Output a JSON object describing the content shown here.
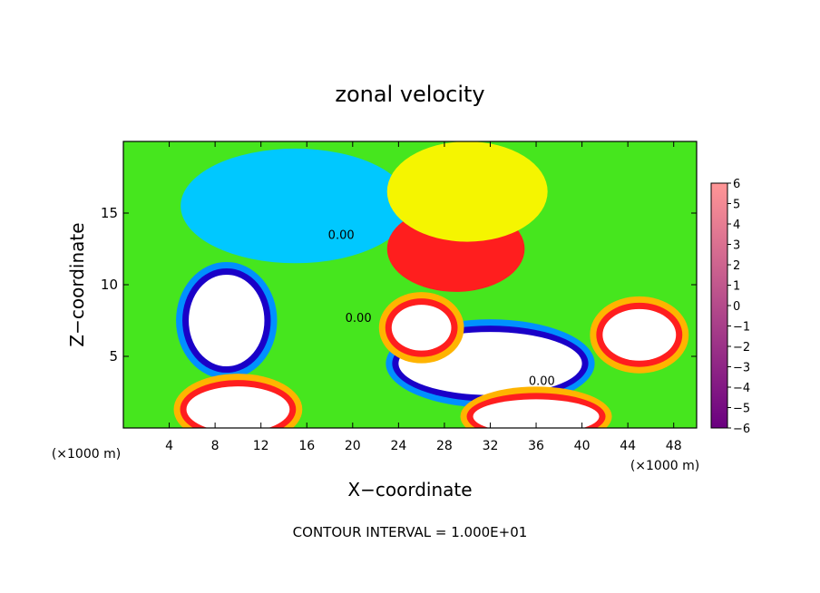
{
  "chart_data": {
    "type": "heatmap",
    "title": "zonal velocity",
    "xlabel": "X−coordinate",
    "ylabel": "Z−coordinate",
    "x_unit_left": "(×1000 m)",
    "x_unit_right": "(×1000 m)",
    "footer": "CONTOUR INTERVAL = 1.000E+01",
    "xlim": [
      0,
      50
    ],
    "ylim": [
      0,
      20
    ],
    "x_ticks": [
      4,
      8,
      12,
      16,
      20,
      24,
      28,
      32,
      36,
      40,
      44,
      48
    ],
    "x_tick_labels": [
      "4",
      "8",
      "12",
      "16",
      "20",
      "24",
      "28",
      "32",
      "36",
      "40",
      "44",
      "48"
    ],
    "y_ticks": [
      5,
      10,
      15
    ],
    "y_tick_labels": [
      "5",
      "10",
      "15"
    ],
    "colorbar": {
      "min": -6,
      "max": 6,
      "tick_values": [
        6,
        5,
        4,
        3,
        2,
        1,
        0,
        -1,
        -2,
        -3,
        -4,
        -5,
        -6
      ],
      "tick_labels": [
        "6",
        "5",
        "4",
        "3",
        "2",
        "1",
        "0",
        "−1",
        "−2",
        "−3",
        "−4",
        "−5",
        "−6"
      ],
      "colors": [
        "#6a0080",
        "#1a00c8",
        "#0032ff",
        "#0090ff",
        "#00c8ff",
        "#00e6c8",
        "#00dc46",
        "#46e61e",
        "#b4f01e",
        "#f5f500",
        "#ffb400",
        "#ff6400",
        "#ff1e1e",
        "#ff5a5a",
        "#ff9696"
      ]
    },
    "contour_labels": [
      {
        "text": "0.00",
        "x": 19,
        "y": 13.2
      },
      {
        "text": "0.00",
        "x": 20.5,
        "y": 7.4
      },
      {
        "text": "0.00",
        "x": 36.5,
        "y": 3.0
      }
    ],
    "features": [
      {
        "kind": "saturated_negative",
        "cx": 9,
        "cy": 7.5,
        "rx": 3.3,
        "ry": 3.2
      },
      {
        "kind": "saturated_negative",
        "cx": 32,
        "cy": 4.5,
        "rx": 8,
        "ry": 2.2
      },
      {
        "kind": "saturated_positive",
        "cx": 26,
        "cy": 7.0,
        "rx": 2.6,
        "ry": 1.6
      },
      {
        "kind": "saturated_positive",
        "cx": 45,
        "cy": 6.5,
        "rx": 3.2,
        "ry": 1.8
      },
      {
        "kind": "saturated_positive",
        "cx": 10,
        "cy": 1.3,
        "rx": 4.5,
        "ry": 1.6
      },
      {
        "kind": "saturated_positive",
        "cx": 36,
        "cy": 0.8,
        "rx": 5.5,
        "ry": 1.2
      },
      {
        "kind": "negative",
        "cx": 15,
        "cy": 15.5,
        "rx": 10,
        "ry": 4,
        "value": -3
      },
      {
        "kind": "positive",
        "cx": 29,
        "cy": 12.5,
        "rx": 6,
        "ry": 3,
        "value": 4
      },
      {
        "kind": "positive",
        "cx": 30,
        "cy": 16.5,
        "rx": 7,
        "ry": 3.5,
        "value": 2
      }
    ]
  }
}
